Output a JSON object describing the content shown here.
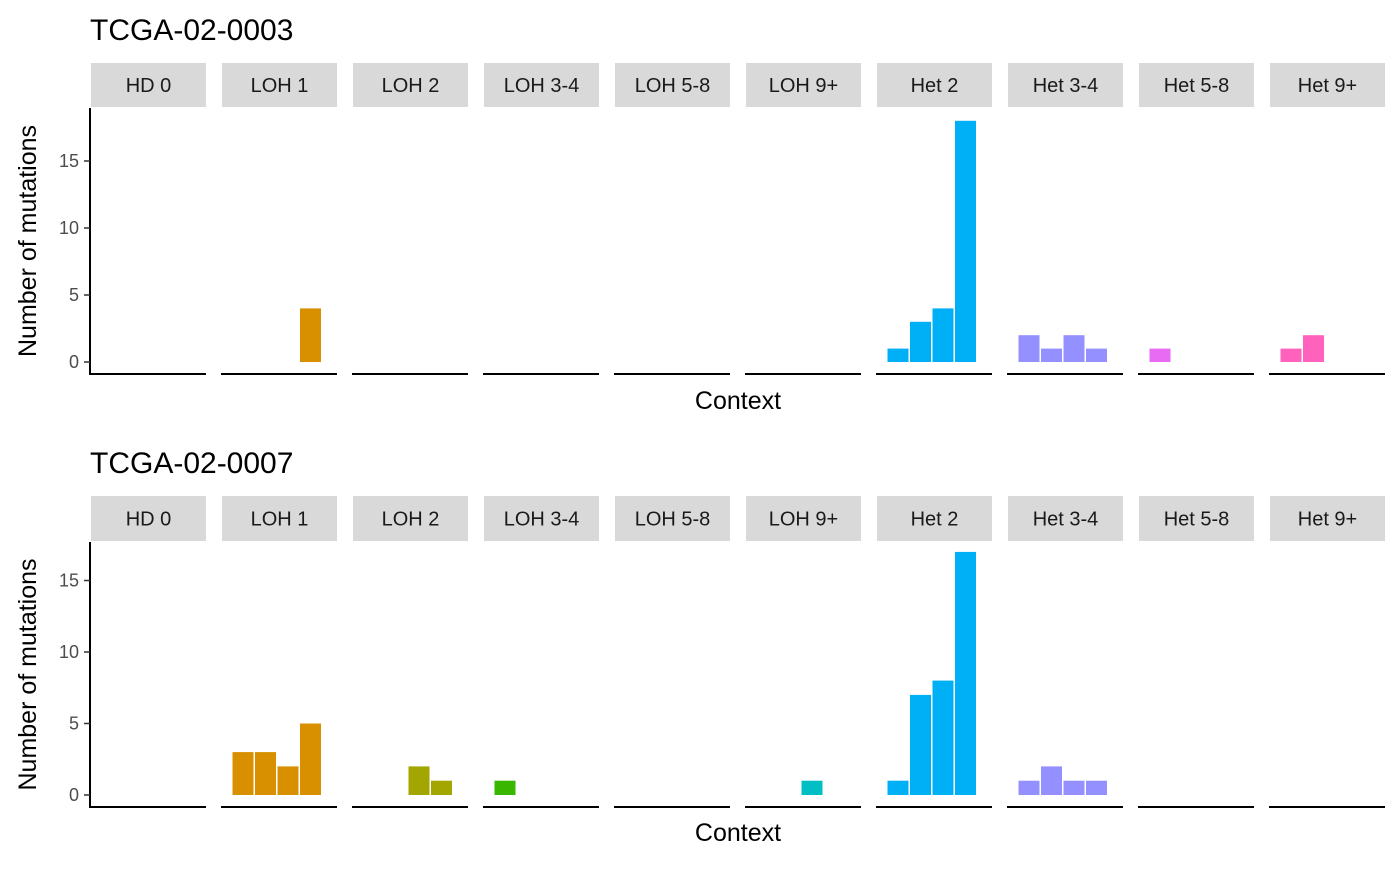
{
  "chart_data": [
    {
      "type": "bar",
      "title": "TCGA-02-0003",
      "xlabel": "Context",
      "ylabel": "Number of mutations",
      "ylim": [
        0,
        18
      ],
      "yticks": [
        0,
        5,
        10,
        15
      ],
      "grid": false,
      "legend": "none",
      "facets": [
        {
          "label": "HD 0",
          "color": "#F8766D",
          "values": [
            0,
            0,
            0,
            0
          ]
        },
        {
          "label": "LOH 1",
          "color": "#D89000",
          "values": [
            0,
            0,
            0,
            4
          ]
        },
        {
          "label": "LOH 2",
          "color": "#A3A500",
          "values": [
            0,
            0,
            0,
            0
          ]
        },
        {
          "label": "LOH 3-4",
          "color": "#39B600",
          "values": [
            0,
            0,
            0,
            0
          ]
        },
        {
          "label": "LOH 5-8",
          "color": "#00BF7D",
          "values": [
            0,
            0,
            0,
            0
          ]
        },
        {
          "label": "LOH 9+",
          "color": "#00BFC4",
          "values": [
            0,
            0,
            0,
            0
          ]
        },
        {
          "label": "Het 2",
          "color": "#00B0F6",
          "values": [
            1,
            3,
            4,
            18
          ]
        },
        {
          "label": "Het 3-4",
          "color": "#9590FF",
          "values": [
            2,
            1,
            2,
            1
          ]
        },
        {
          "label": "Het 5-8",
          "color": "#E76BF3",
          "values": [
            1,
            0,
            0,
            0
          ]
        },
        {
          "label": "Het 9+",
          "color": "#FF62BC",
          "values": [
            1,
            2,
            0,
            0
          ]
        }
      ]
    },
    {
      "type": "bar",
      "title": "TCGA-02-0007",
      "xlabel": "Context",
      "ylabel": "Number of mutations",
      "ylim": [
        0,
        17
      ],
      "yticks": [
        0,
        5,
        10,
        15
      ],
      "grid": false,
      "legend": "none",
      "facets": [
        {
          "label": "HD 0",
          "color": "#F8766D",
          "values": [
            0,
            0,
            0,
            0
          ]
        },
        {
          "label": "LOH 1",
          "color": "#D89000",
          "values": [
            3,
            3,
            2,
            5
          ]
        },
        {
          "label": "LOH 2",
          "color": "#A3A500",
          "values": [
            0,
            0,
            2,
            1
          ]
        },
        {
          "label": "LOH 3-4",
          "color": "#39B600",
          "values": [
            1,
            0,
            0,
            0
          ]
        },
        {
          "label": "LOH 5-8",
          "color": "#00BF7D",
          "values": [
            0,
            0,
            0,
            0
          ]
        },
        {
          "label": "LOH 9+",
          "color": "#00BFC4",
          "values": [
            0,
            0,
            1,
            0
          ]
        },
        {
          "label": "Het 2",
          "color": "#00B0F6",
          "values": [
            1,
            7,
            8,
            17
          ]
        },
        {
          "label": "Het 3-4",
          "color": "#9590FF",
          "values": [
            1,
            2,
            1,
            1
          ]
        },
        {
          "label": "Het 5-8",
          "color": "#E76BF3",
          "values": [
            0,
            0,
            0,
            0
          ]
        },
        {
          "label": "Het 9+",
          "color": "#FF62BC",
          "values": [
            0,
            0,
            0,
            0
          ]
        }
      ]
    }
  ]
}
